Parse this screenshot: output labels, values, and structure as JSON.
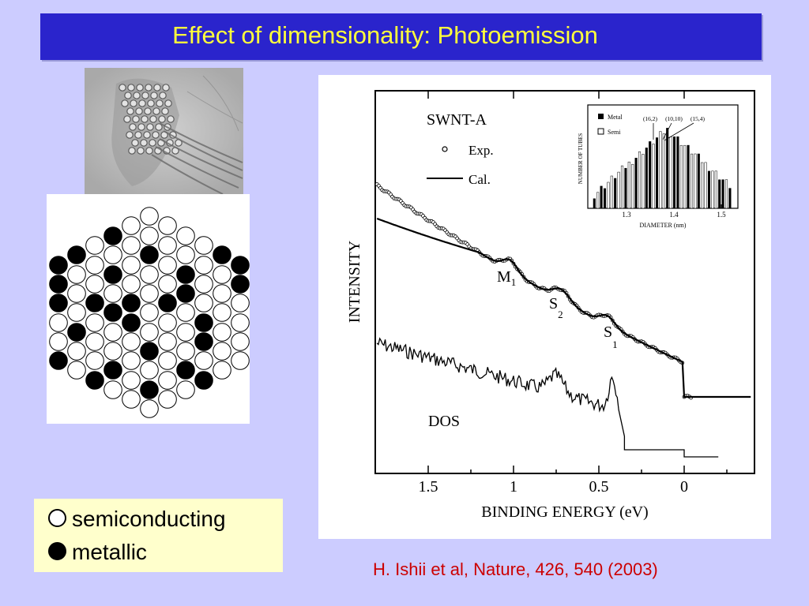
{
  "slide": {
    "title": "Effect of dimensionality: Photoemission",
    "citation": "H. Ishii et al, Nature, 426, 540 (2003)"
  },
  "legend": {
    "items": [
      {
        "symbol": "open-circle-icon",
        "label": "semiconducting"
      },
      {
        "symbol": "filled-circle-icon",
        "label": "metallic"
      }
    ]
  },
  "plot": {
    "sample_label": "SWNT-A",
    "exp_label": "Exp.",
    "cal_label": "Cal.",
    "ylabel": "INTENSITY",
    "xlabel": "BINDING ENERGY (eV)",
    "x_ticks": [
      "1.5",
      "1",
      "0.5",
      "0"
    ],
    "peak_labels": [
      {
        "main": "M",
        "sub": "1"
      },
      {
        "main": "S",
        "sub": "2"
      },
      {
        "main": "S",
        "sub": "1"
      }
    ],
    "dos_label": "DOS",
    "inset": {
      "legend_metal": "Metal",
      "legend_semi": "Semi",
      "ylabel": "NUMBER OF TUBES",
      "xlabel": "DIAMETER (nm)",
      "x_ticks": [
        "1.3",
        "1.4",
        "1.5"
      ],
      "annotations": [
        "(16,2)",
        "(10,10)",
        "(15,4)"
      ]
    }
  },
  "colors": {
    "background": "#ccccff",
    "title_bar": "#2a24cc",
    "title_text": "#ffff3c",
    "legend_bg": "#ffffcc",
    "citation": "#cc0000"
  }
}
